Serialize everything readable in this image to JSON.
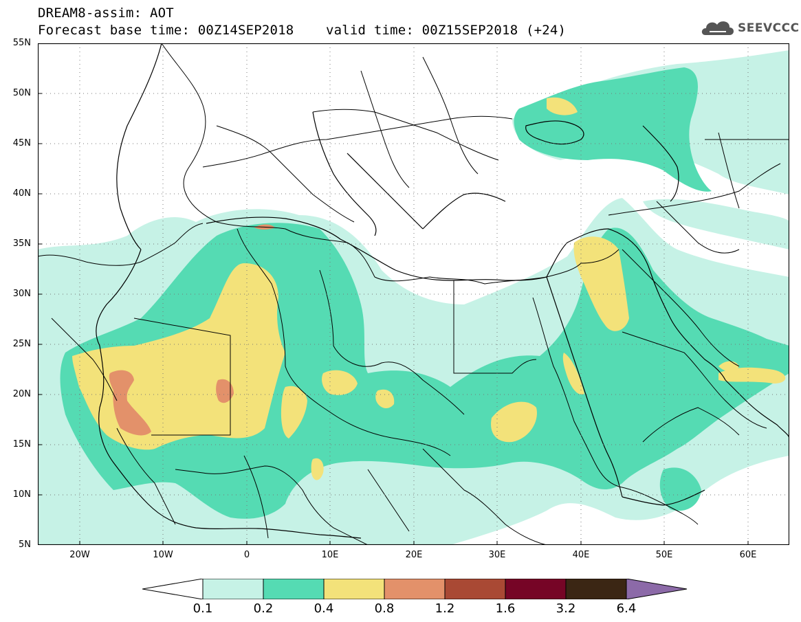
{
  "title_line1": "DREAM8-assim: AOT",
  "title_line2": "Forecast base time: 00Z14SEP2018    valid time: 00Z15SEP2018 (+24)",
  "logo": {
    "text": "SEEVCCC",
    "icon": "cloud-icon"
  },
  "map": {
    "lon_range": [
      -25,
      65
    ],
    "lat_range": [
      5,
      55
    ],
    "lat_labels": [
      "5N",
      "10N",
      "15N",
      "20N",
      "25N",
      "30N",
      "35N",
      "40N",
      "45N",
      "50N",
      "55N"
    ],
    "lon_labels": [
      "20W",
      "10W",
      "0",
      "10E",
      "20E",
      "30E",
      "40E",
      "50E",
      "60E"
    ],
    "grid": "dotted"
  },
  "colorbar": {
    "labels": [
      "0.1",
      "0.2",
      "0.4",
      "0.8",
      "1.2",
      "1.6",
      "3.2",
      "6.4"
    ],
    "colors": [
      "#ffffff",
      "#c6f2e6",
      "#55dbb3",
      "#f3e27a",
      "#e3916a",
      "#a94934",
      "#760526",
      "#3b2614",
      "#8c6aa8"
    ]
  }
}
